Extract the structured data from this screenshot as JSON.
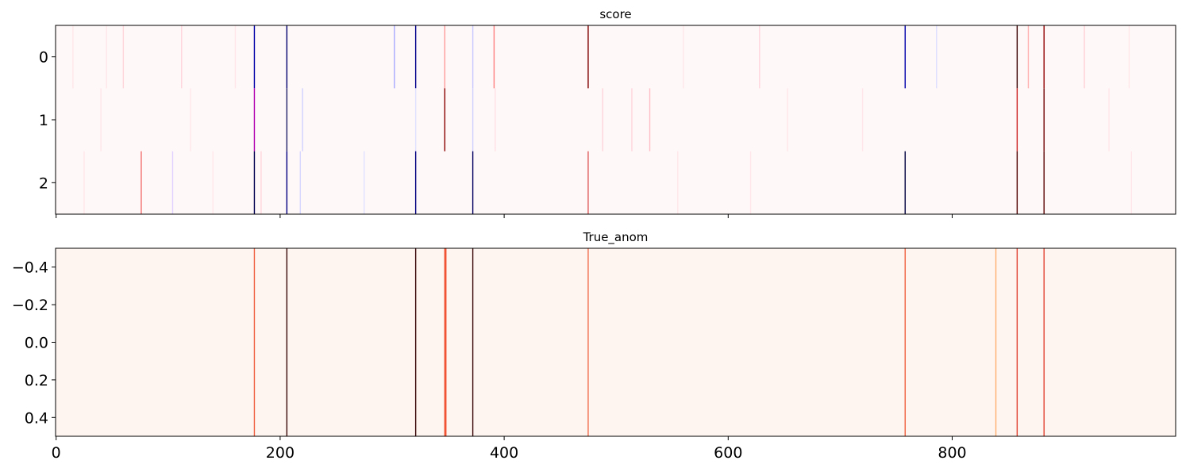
{
  "chart_data": [
    {
      "type": "heatmap",
      "title": "score",
      "colormap": "bwr",
      "background": "#fff8f8",
      "yticks": [
        "0",
        "1",
        "2"
      ],
      "xlim": [
        0,
        999
      ],
      "xticks": [
        0,
        200,
        400,
        600,
        800
      ],
      "show_xtick_labels": false,
      "rows": [
        {
          "row": 0,
          "stripes": [
            {
              "x": 15,
              "color": "#ffe6ea"
            },
            {
              "x": 45,
              "color": "#ffe6ea"
            },
            {
              "x": 60,
              "color": "#ffd5dc"
            },
            {
              "x": 112,
              "color": "#ffd5dc"
            },
            {
              "x": 160,
              "color": "#ffe6ea"
            },
            {
              "x": 177,
              "color": "#0000a8"
            },
            {
              "x": 206,
              "color": "#00006e"
            },
            {
              "x": 302,
              "color": "#a8a8ff"
            },
            {
              "x": 321,
              "color": "#00008c"
            },
            {
              "x": 347,
              "color": "#ff9a9a"
            },
            {
              "x": 372,
              "color": "#c8c8ff"
            },
            {
              "x": 391,
              "color": "#ff8080"
            },
            {
              "x": 475,
              "color": "#800000"
            },
            {
              "x": 560,
              "color": "#ffe6ea"
            },
            {
              "x": 628,
              "color": "#ffd5dc"
            },
            {
              "x": 758,
              "color": "#0000aa"
            },
            {
              "x": 786,
              "color": "#dcdcff"
            },
            {
              "x": 858,
              "color": "#3a0000"
            },
            {
              "x": 868,
              "color": "#ffb0b0"
            },
            {
              "x": 882,
              "color": "#900000"
            },
            {
              "x": 918,
              "color": "#ffd0d6"
            },
            {
              "x": 958,
              "color": "#ffe6ea"
            }
          ]
        },
        {
          "row": 1,
          "stripes": [
            {
              "x": 40,
              "color": "#ffe6ea"
            },
            {
              "x": 120,
              "color": "#ffe6ea"
            },
            {
              "x": 177,
              "color": "#b000b0"
            },
            {
              "x": 206,
              "color": "#20206a"
            },
            {
              "x": 220,
              "color": "#d0d0ff"
            },
            {
              "x": 321,
              "color": "#e0e0ff"
            },
            {
              "x": 347,
              "color": "#8b0000"
            },
            {
              "x": 372,
              "color": "#d0d0ff"
            },
            {
              "x": 392,
              "color": "#ffe0e6"
            },
            {
              "x": 488,
              "color": "#ffd5dc"
            },
            {
              "x": 514,
              "color": "#ffd5dc"
            },
            {
              "x": 530,
              "color": "#ffbfc8"
            },
            {
              "x": 653,
              "color": "#ffe6ea"
            },
            {
              "x": 720,
              "color": "#ffe6ea"
            },
            {
              "x": 858,
              "color": "#cc2020"
            },
            {
              "x": 882,
              "color": "#700000"
            },
            {
              "x": 940,
              "color": "#ffe6ea"
            }
          ]
        },
        {
          "row": 2,
          "stripes": [
            {
              "x": 25,
              "color": "#ffe6ea"
            },
            {
              "x": 76,
              "color": "#f07070"
            },
            {
              "x": 104,
              "color": "#e0d0ff"
            },
            {
              "x": 140,
              "color": "#ffe6ea"
            },
            {
              "x": 177,
              "color": "#000050"
            },
            {
              "x": 183,
              "color": "#ffd5dc"
            },
            {
              "x": 206,
              "color": "#000080"
            },
            {
              "x": 218,
              "color": "#d6d6ff"
            },
            {
              "x": 275,
              "color": "#e0e0ff"
            },
            {
              "x": 321,
              "color": "#000080"
            },
            {
              "x": 372,
              "color": "#000060"
            },
            {
              "x": 475,
              "color": "#e06060"
            },
            {
              "x": 555,
              "color": "#ffe6ea"
            },
            {
              "x": 620,
              "color": "#ffe6ea"
            },
            {
              "x": 758,
              "color": "#000040"
            },
            {
              "x": 858,
              "color": "#500000"
            },
            {
              "x": 882,
              "color": "#5a0000"
            },
            {
              "x": 960,
              "color": "#ffe6ea"
            }
          ]
        }
      ]
    },
    {
      "type": "heatmap",
      "title": "True_anom",
      "colormap": "Reds",
      "background": "#fff5f0",
      "ylim": [
        -0.5,
        0.5
      ],
      "yticks": [
        "−0.4",
        "−0.2",
        "0.0",
        "0.2",
        "0.4"
      ],
      "ytick_values": [
        -0.4,
        -0.2,
        0.0,
        0.2,
        0.4
      ],
      "xlim": [
        0,
        999
      ],
      "xticks": [
        0,
        200,
        400,
        600,
        800
      ],
      "xtick_labels": [
        "0",
        "200",
        "400",
        "600",
        "800"
      ],
      "stripes": [
        {
          "x": 177,
          "color": "#f06040"
        },
        {
          "x": 206,
          "color": "#3a0808"
        },
        {
          "x": 321,
          "color": "#3a0808"
        },
        {
          "x": 347,
          "color": "#f05030"
        },
        {
          "x": 348,
          "color": "#f05030"
        },
        {
          "x": 372,
          "color": "#3a0808"
        },
        {
          "x": 475,
          "color": "#f07050"
        },
        {
          "x": 758,
          "color": "#f06040"
        },
        {
          "x": 839,
          "color": "#fdb070"
        },
        {
          "x": 858,
          "color": "#e04030"
        },
        {
          "x": 882,
          "color": "#e04030"
        }
      ]
    }
  ]
}
